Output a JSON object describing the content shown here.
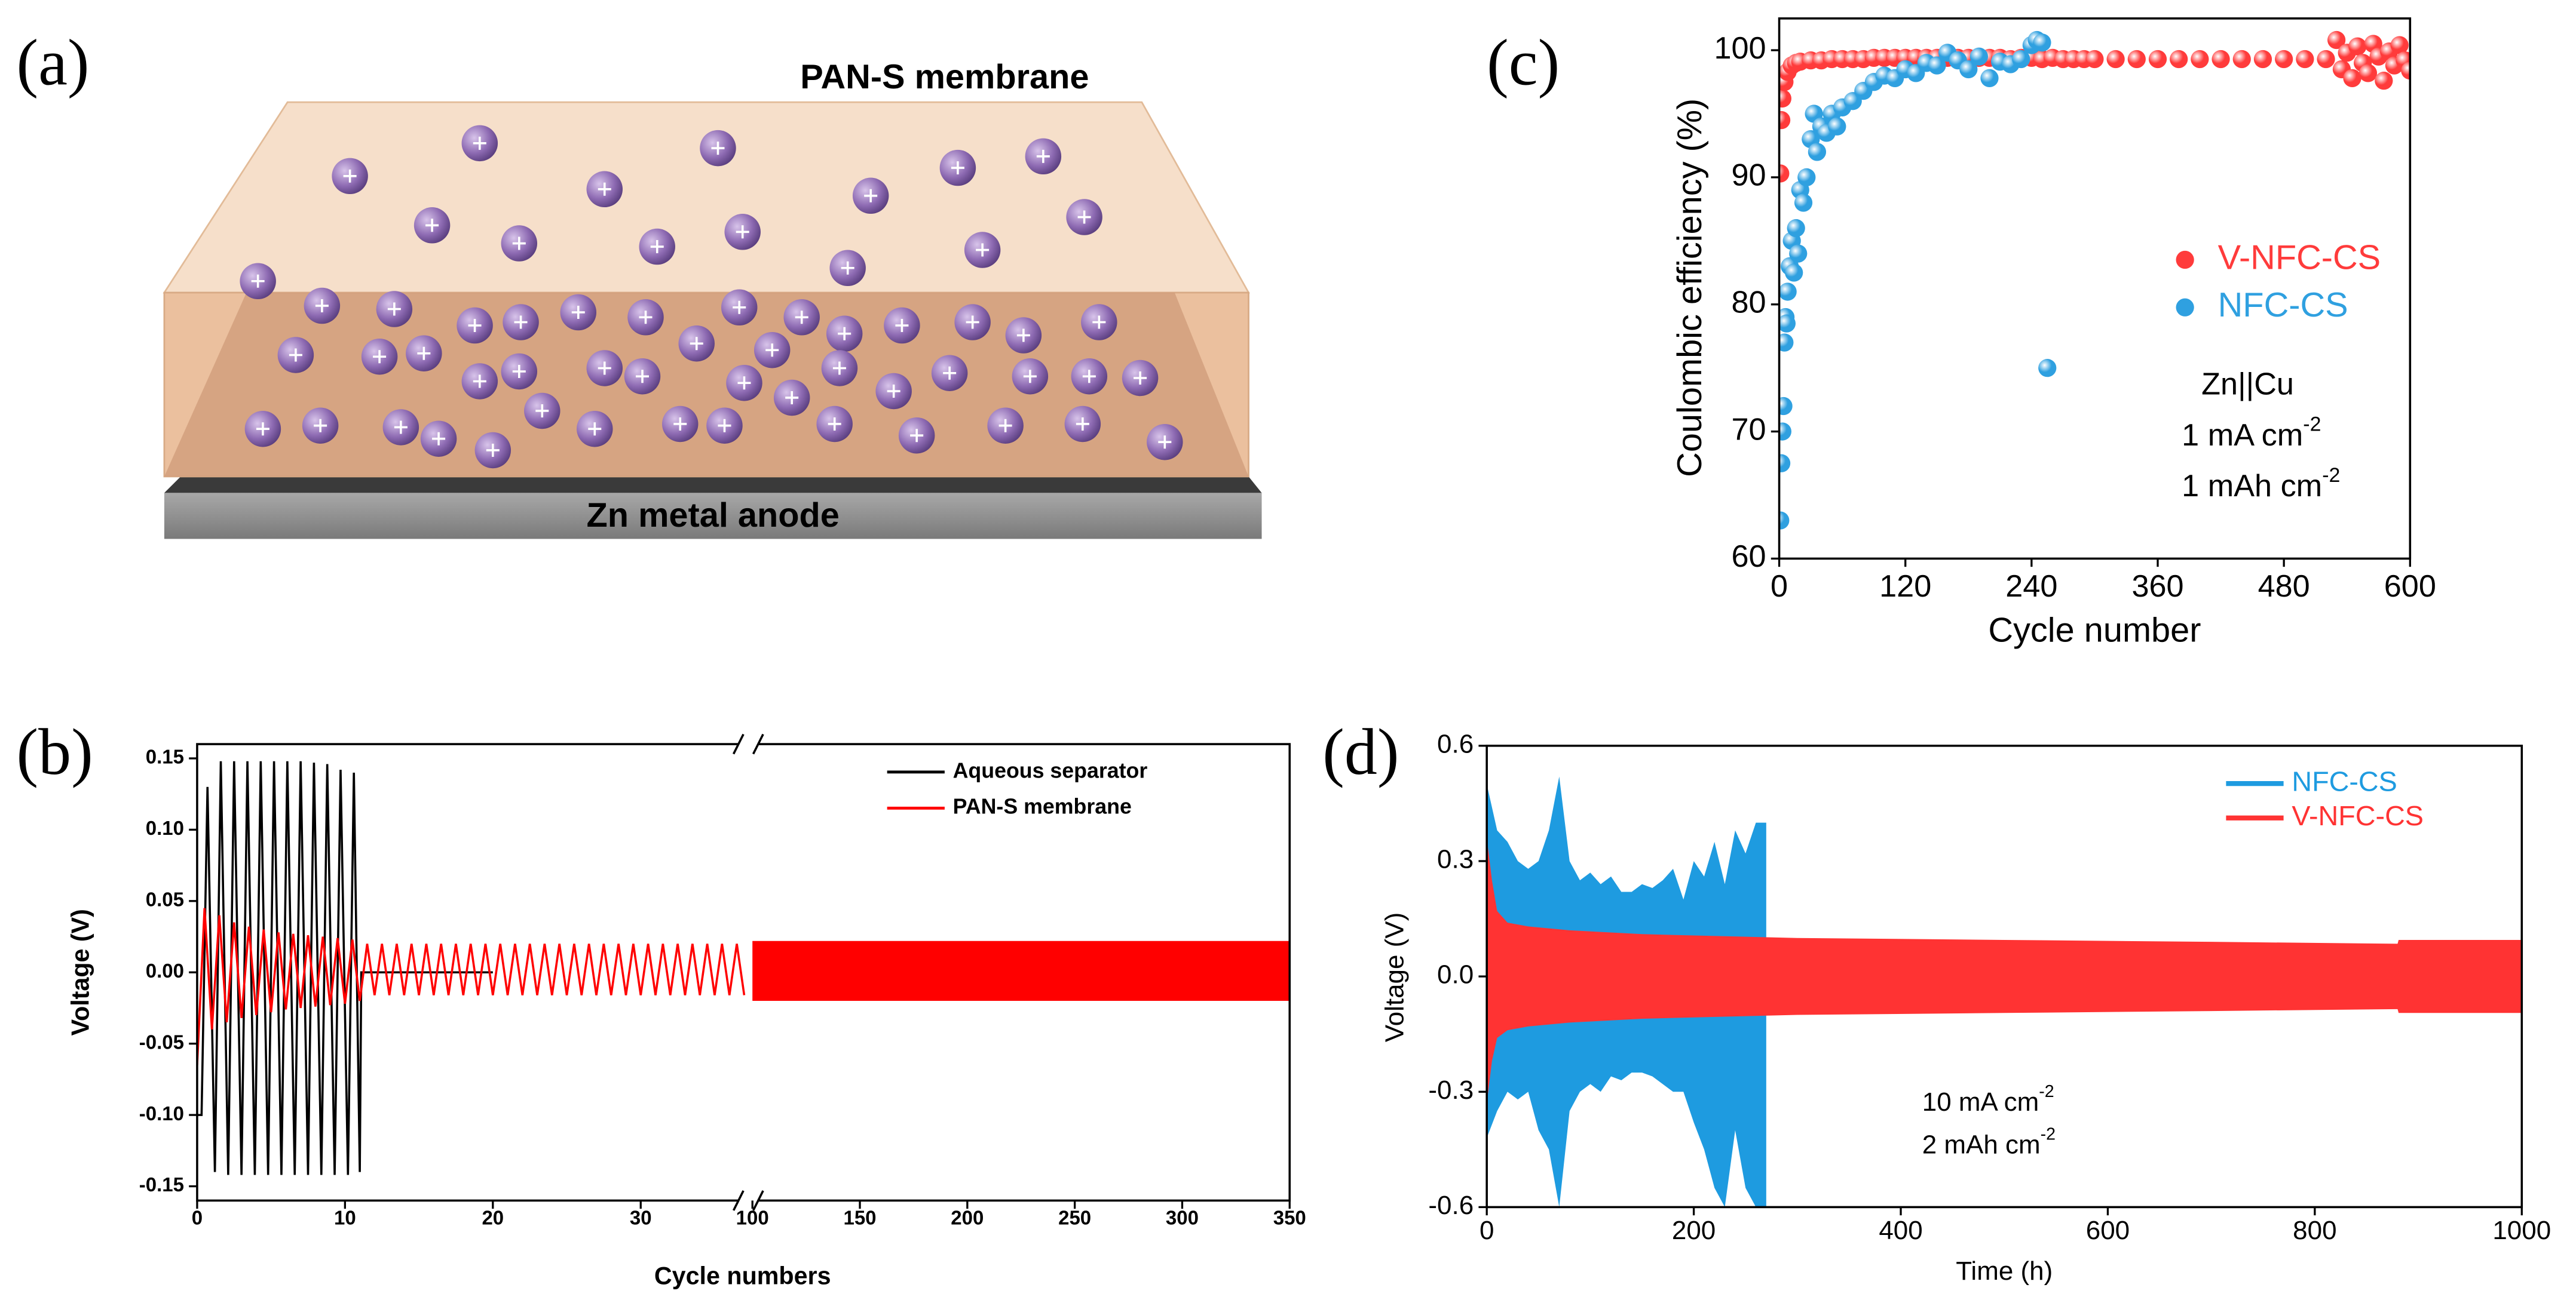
{
  "panel_a": {
    "label": "(a)",
    "membrane": "PAN-S membrane",
    "anode": "Zn metal anode"
  },
  "chart_data": [
    {
      "label": "(b)",
      "type": "line",
      "xlabel": "Cycle numbers",
      "ylabel": "Voltage (V)",
      "xlim": [
        0,
        37
      ],
      "xticks": [
        0,
        10,
        20,
        30
      ],
      "xlim_break": [
        100,
        350
      ],
      "xticks_break": [
        100,
        150,
        200,
        250,
        300,
        350
      ],
      "ylim": [
        -0.16,
        0.16
      ],
      "yticks": [
        -0.15,
        {
          "value": -0.1,
          "label": "-0.10"
        },
        -0.05,
        {
          "value": 0,
          "label": "0.00"
        },
        0.05,
        {
          "value": 0.1,
          "label": "0.10"
        },
        0.15
      ],
      "legend": "upper right",
      "series": [
        {
          "name": "Aqueous separator",
          "color": "#000000",
          "x": [
            0,
            0.3,
            0.7,
            1.2,
            1.6,
            2.1,
            2.5,
            3.0,
            3.4,
            3.9,
            4.3,
            4.8,
            5.2,
            5.7,
            6.1,
            6.6,
            7.0,
            7.5,
            7.9,
            8.4,
            8.8,
            9.3,
            9.7,
            10.2,
            10.6,
            11.0,
            11.1,
            20
          ],
          "values": [
            -0.1,
            -0.1,
            0.13,
            -0.14,
            0.148,
            -0.142,
            0.148,
            -0.142,
            0.148,
            -0.142,
            0.148,
            -0.142,
            0.148,
            -0.142,
            0.148,
            -0.142,
            0.148,
            -0.142,
            0.147,
            -0.142,
            0.146,
            -0.142,
            0.142,
            -0.142,
            0.14,
            -0.14,
            0,
            0
          ]
        },
        {
          "name": "PAN-S membrane",
          "color": "#ff0000",
          "x": [
            0,
            0.5,
            1,
            1.5,
            2,
            2.5,
            3,
            3.5,
            4,
            4.5,
            5,
            5.5,
            6,
            6.5,
            7,
            7.5,
            8,
            8.5,
            9,
            9.5,
            10,
            10.5,
            11,
            11.5,
            12,
            12.5,
            13,
            13.5,
            14,
            14.5,
            15,
            15.5,
            16,
            16.5,
            17,
            17.5,
            18,
            18.5,
            19,
            19.5,
            20,
            20.5,
            21,
            21.5,
            22,
            22.5,
            23,
            23.5,
            24,
            24.5,
            25,
            25.5,
            26,
            26.5,
            27,
            27.5,
            28,
            28.5,
            29,
            29.5,
            30,
            30.5,
            31,
            31.5,
            32,
            32.5,
            33,
            33.5,
            34,
            34.5,
            35,
            35.5,
            36,
            36.5,
            37
          ],
          "values": [
            -0.065,
            0.045,
            -0.04,
            0.04,
            -0.035,
            0.035,
            -0.032,
            0.032,
            -0.03,
            0.03,
            -0.028,
            0.028,
            -0.026,
            0.027,
            -0.025,
            0.026,
            -0.024,
            0.025,
            -0.023,
            0.024,
            -0.022,
            0.023,
            -0.02,
            0.02,
            -0.016,
            0.02,
            -0.016,
            0.02,
            -0.016,
            0.02,
            -0.016,
            0.02,
            -0.016,
            0.02,
            -0.016,
            0.02,
            -0.016,
            0.02,
            -0.016,
            0.02,
            -0.016,
            0.02,
            -0.016,
            0.02,
            -0.016,
            0.02,
            -0.016,
            0.02,
            -0.016,
            0.02,
            -0.016,
            0.02,
            -0.016,
            0.02,
            -0.016,
            0.02,
            -0.016,
            0.02,
            -0.016,
            0.02,
            -0.016,
            0.02,
            -0.016,
            0.02,
            -0.016,
            0.02,
            -0.016,
            0.02,
            -0.016,
            0.02,
            -0.016,
            0.02,
            -0.016,
            0.02,
            -0.016
          ],
          "x_break": [
            100,
            350
          ],
          "upper_break": [
            0.022,
            0.022
          ],
          "lower_break": [
            -0.02,
            -0.02
          ]
        }
      ]
    },
    {
      "label": "(c)",
      "type": "scatter",
      "xlabel": "Cycle number",
      "ylabel": "Coulombic efficiency (%)",
      "xlim": [
        0,
        600
      ],
      "xticks": [
        0,
        120,
        240,
        360,
        480,
        600
      ],
      "ylim": [
        60,
        102.5
      ],
      "yticks": [
        60,
        70,
        80,
        90,
        100
      ],
      "legend": "right",
      "series": [
        {
          "name": "V-NFC-CS",
          "color": "#ff3b3b",
          "x": [
            1,
            2,
            3,
            5,
            8,
            12,
            16,
            20,
            30,
            40,
            50,
            60,
            70,
            80,
            90,
            100,
            110,
            120,
            130,
            140,
            150,
            160,
            170,
            180,
            190,
            200,
            210,
            220,
            230,
            240,
            250,
            260,
            270,
            280,
            290,
            300,
            320,
            340,
            360,
            380,
            400,
            420,
            440,
            460,
            480,
            500,
            520,
            530,
            535,
            540,
            545,
            550,
            555,
            560,
            565,
            570,
            575,
            580,
            585,
            590,
            595,
            600
          ],
          "values": [
            90.3,
            94.5,
            96.2,
            97.5,
            98.3,
            98.8,
            99.0,
            99.1,
            99.2,
            99.2,
            99.3,
            99.3,
            99.3,
            99.3,
            99.4,
            99.4,
            99.4,
            99.4,
            99.4,
            99.4,
            99.4,
            99.4,
            99.4,
            99.4,
            99.4,
            99.4,
            99.4,
            99.3,
            99.4,
            99.4,
            99.3,
            99.4,
            99.3,
            99.3,
            99.3,
            99.3,
            99.3,
            99.3,
            99.3,
            99.3,
            99.3,
            99.3,
            99.3,
            99.3,
            99.3,
            99.3,
            99.3,
            100.8,
            98.5,
            99.8,
            97.8,
            100.3,
            99.0,
            98.2,
            100.5,
            99.5,
            97.6,
            99.9,
            98.8,
            100.4,
            99.2,
            98.4
          ]
        },
        {
          "name": "NFC-CS",
          "color": "#2fa0e0",
          "x": [
            1,
            2,
            3,
            4,
            5,
            6,
            7,
            8,
            10,
            12,
            14,
            16,
            18,
            20,
            23,
            26,
            30,
            33,
            36,
            40,
            45,
            50,
            55,
            60,
            70,
            80,
            90,
            100,
            110,
            120,
            130,
            140,
            150,
            160,
            170,
            180,
            190,
            200,
            210,
            220,
            230,
            240,
            245,
            250,
            255
          ],
          "values": [
            63,
            67.5,
            70,
            72,
            77,
            79,
            78.5,
            81,
            83,
            85,
            82.5,
            86,
            84,
            89,
            88,
            90,
            93,
            95,
            92,
            94,
            93.5,
            95,
            94,
            95.5,
            96,
            96.8,
            97.5,
            98,
            97.8,
            98.5,
            98.2,
            99,
            98.8,
            99.8,
            99.2,
            98.5,
            99.5,
            97.8,
            99.1,
            98.9,
            99.3,
            100.4,
            100.8,
            100.6,
            75
          ]
        }
      ],
      "annotations": [
        {
          "text": "Zn||Cu"
        },
        {
          "text": "1 mA cm",
          "sup": "-2"
        },
        {
          "text": "1 mAh cm",
          "sup": "-2"
        }
      ]
    },
    {
      "label": "(d)",
      "type": "line",
      "xlabel": "Time (h)",
      "ylabel": "Voltage (V)",
      "xlim": [
        0,
        1000
      ],
      "xticks": [
        0,
        200,
        400,
        600,
        800,
        1000
      ],
      "ylim": [
        -0.6,
        0.6
      ],
      "yticks": [
        -0.6,
        -0.3,
        {
          "value": 0,
          "label": "0.0"
        },
        0.3,
        0.6
      ],
      "legend": "upper right",
      "series": [
        {
          "name": "NFC-CS",
          "color": "#1e9be0",
          "x": [
            0,
            10,
            20,
            30,
            40,
            50,
            60,
            70,
            80,
            90,
            100,
            110,
            120,
            130,
            140,
            150,
            160,
            170,
            180,
            190,
            200,
            210,
            220,
            230,
            240,
            250,
            260,
            270
          ],
          "upper": [
            0.5,
            0.38,
            0.35,
            0.3,
            0.28,
            0.3,
            0.38,
            0.52,
            0.3,
            0.25,
            0.27,
            0.24,
            0.26,
            0.22,
            0.22,
            0.24,
            0.23,
            0.25,
            0.28,
            0.2,
            0.3,
            0.26,
            0.35,
            0.24,
            0.38,
            0.32,
            0.4,
            0.4
          ],
          "lower": [
            -0.42,
            -0.35,
            -0.3,
            -0.32,
            -0.3,
            -0.4,
            -0.45,
            -0.6,
            -0.35,
            -0.3,
            -0.28,
            -0.3,
            -0.26,
            -0.27,
            -0.25,
            -0.25,
            -0.26,
            -0.28,
            -0.3,
            -0.3,
            -0.38,
            -0.45,
            -0.55,
            -0.6,
            -0.4,
            -0.55,
            -0.6,
            -0.6
          ]
        },
        {
          "name": "V-NFC-CS",
          "color": "#ff3333",
          "x": [
            0,
            5,
            10,
            20,
            40,
            80,
            150,
            300,
            500,
            700,
            880,
            881,
            1000
          ],
          "upper": [
            0.36,
            0.25,
            0.17,
            0.14,
            0.13,
            0.12,
            0.11,
            0.1,
            0.095,
            0.09,
            0.085,
            0.095,
            0.095
          ],
          "lower": [
            -0.33,
            -0.22,
            -0.16,
            -0.14,
            -0.13,
            -0.12,
            -0.11,
            -0.1,
            -0.095,
            -0.09,
            -0.085,
            -0.095,
            -0.095
          ]
        }
      ],
      "annotations": [
        {
          "text": "10 mA cm",
          "sup": "-2"
        },
        {
          "text": "2 mAh cm",
          "sup": "-2"
        }
      ]
    }
  ]
}
